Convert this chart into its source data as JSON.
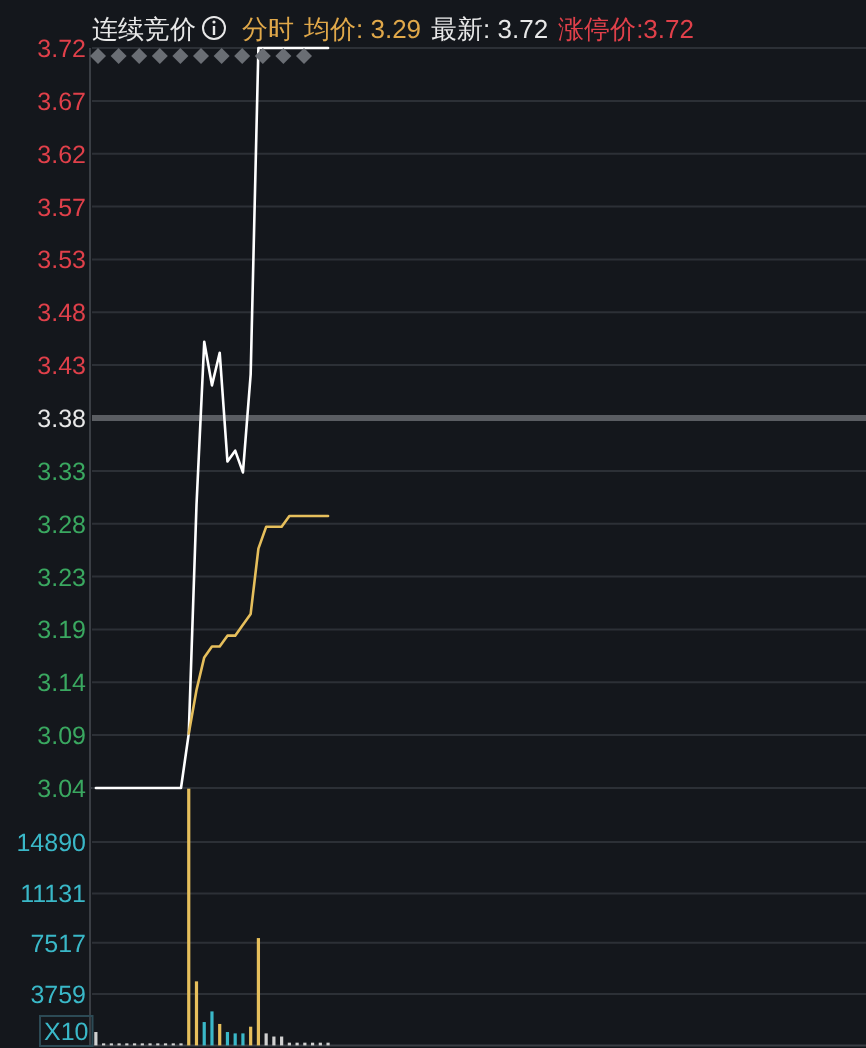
{
  "chart_data": [
    {
      "type": "line",
      "title": "连续竞价",
      "annotations": [
        "分时",
        "均价: 3.29",
        "最新: 3.72",
        "涨停价:3.72"
      ],
      "categories": [
        null,
        null,
        null,
        null,
        null,
        null,
        null,
        null,
        null,
        null,
        null,
        null,
        null,
        null,
        null,
        null,
        null,
        null,
        null,
        null,
        null,
        null,
        null,
        null,
        null,
        null,
        null,
        null,
        null,
        null,
        null,
        null,
        null,
        null,
        null,
        null,
        null,
        null,
        null,
        null,
        null,
        null,
        null,
        null,
        null,
        null,
        null,
        null,
        null,
        null,
        null,
        null,
        null,
        null,
        null,
        null,
        null,
        null,
        null,
        null,
        null,
        null,
        null,
        null,
        null,
        null,
        null,
        null,
        null,
        null,
        null,
        null,
        null,
        null,
        null,
        null,
        null,
        null,
        null,
        null,
        null,
        null,
        null,
        null,
        null,
        null,
        null,
        null,
        null,
        null,
        null,
        null,
        null,
        null,
        null,
        null,
        null,
        null,
        null,
        null
      ],
      "series": [
        {
          "color": "#ffffff",
          "values": [
            3.04,
            3.04,
            3.04,
            3.04,
            3.04,
            3.04,
            3.04,
            3.04,
            3.04,
            3.04,
            3.04,
            3.04,
            3.09,
            3.3,
            3.45,
            3.41,
            3.44,
            3.34,
            3.35,
            3.33,
            3.42,
            3.72,
            3.72,
            3.72,
            3.72,
            3.72,
            3.72,
            3.72,
            3.72,
            3.72,
            3.72,
            null,
            null,
            null,
            null,
            null,
            null,
            null,
            null,
            null,
            null,
            null,
            null,
            null,
            null,
            null,
            null,
            null,
            null,
            null,
            null,
            null,
            null,
            null,
            null,
            null,
            null,
            null,
            null,
            null,
            null,
            null,
            null,
            null,
            null,
            null,
            null,
            null,
            null,
            null,
            null,
            null,
            null,
            null,
            null,
            null,
            null,
            null,
            null,
            null,
            null,
            null,
            null,
            null,
            null,
            null,
            null,
            null,
            null,
            null,
            null,
            null,
            null,
            null,
            null,
            null,
            null,
            null,
            null,
            null
          ]
        },
        {
          "color": "#e6bf5c",
          "values": [
            null,
            null,
            null,
            null,
            null,
            null,
            null,
            null,
            null,
            null,
            null,
            null,
            3.09,
            3.13,
            3.16,
            3.17,
            3.17,
            3.18,
            3.18,
            3.19,
            3.2,
            3.26,
            3.28,
            3.28,
            3.28,
            3.29,
            3.29,
            3.29,
            3.29,
            3.29,
            3.29,
            null,
            null,
            null,
            null,
            null,
            null,
            null,
            null,
            null,
            null,
            null,
            null,
            null,
            null,
            null,
            null,
            null,
            null,
            null,
            null,
            null,
            null,
            null,
            null,
            null,
            null,
            null,
            null,
            null,
            null,
            null,
            null,
            null,
            null,
            null,
            null,
            null,
            null,
            null,
            null,
            null,
            null,
            null,
            null,
            null,
            null,
            null,
            null,
            null,
            null,
            null,
            null,
            null,
            null,
            null,
            null,
            null,
            null,
            null,
            null,
            null,
            null,
            null,
            null,
            null,
            null,
            null,
            null,
            null
          ]
        }
      ],
      "ylim": [
        3.04,
        3.72
      ],
      "yticks": [
        3.04,
        {
          "value": 3.0886,
          "label": "3.09"
        },
        {
          "value": 3.1371,
          "label": "3.14"
        },
        {
          "value": 3.1857,
          "label": "3.19"
        },
        {
          "value": 3.2343,
          "label": "3.23"
        },
        {
          "value": 3.2829,
          "label": "3.28"
        },
        {
          "value": 3.3314,
          "label": "3.33"
        },
        3.38,
        {
          "value": 3.4286,
          "label": "3.43"
        },
        {
          "value": 3.4771,
          "label": "3.48"
        },
        {
          "value": 3.5257,
          "label": "3.53"
        },
        {
          "value": 3.5743,
          "label": "3.57"
        },
        {
          "value": 3.6229,
          "label": "3.62"
        },
        {
          "value": 3.6714,
          "label": "3.67"
        },
        3.72
      ],
      "ref_lines": [
        {
          "axis": "y",
          "value": 3.38,
          "color": "#5a5d62"
        }
      ],
      "grid": "y",
      "tick_labels": "y"
    },
    {
      "type": "bar",
      "annotations": [
        "X10"
      ],
      "categories": [
        null,
        null,
        null,
        null,
        null,
        null,
        null,
        null,
        null,
        null,
        null,
        null,
        null,
        null,
        null,
        null,
        null,
        null,
        null,
        null,
        null,
        null,
        null,
        null,
        null,
        null,
        null,
        null,
        null,
        null,
        null,
        null,
        null,
        null,
        null,
        null,
        null,
        null,
        null,
        null,
        null,
        null,
        null,
        null,
        null,
        null,
        null,
        null,
        null,
        null,
        null,
        null,
        null,
        null,
        null,
        null,
        null,
        null,
        null,
        null,
        null,
        null,
        null,
        null,
        null,
        null,
        null,
        null,
        null,
        null,
        null,
        null,
        null,
        null,
        null,
        null,
        null,
        null,
        null,
        null,
        null,
        null,
        null,
        null,
        null,
        null,
        null,
        null,
        null,
        null,
        null,
        null,
        null,
        null,
        null,
        null,
        null,
        null,
        null,
        null
      ],
      "values": [
        980,
        150,
        150,
        150,
        150,
        150,
        150,
        150,
        150,
        150,
        150,
        150,
        18800,
        4690,
        1710,
        2490,
        1570,
        980,
        880,
        880,
        1370,
        7860,
        880,
        650,
        650,
        200,
        200,
        200,
        200,
        200,
        200,
        null,
        null,
        null,
        null,
        null,
        null,
        null,
        null,
        null,
        null,
        null,
        null,
        null,
        null,
        null,
        null,
        null,
        null,
        null,
        null,
        null,
        null,
        null,
        null,
        null,
        null,
        null,
        null,
        null,
        null,
        null,
        null,
        null,
        null,
        null,
        null,
        null,
        null,
        null,
        null,
        null,
        null,
        null,
        null,
        null,
        null,
        null,
        null,
        null,
        null,
        null,
        null,
        null,
        null,
        null,
        null,
        null,
        null,
        null,
        null,
        null,
        null,
        null,
        null,
        null,
        null,
        null,
        null,
        null
      ],
      "colors": [
        "#d0d0d0",
        "#d0d0d0",
        "#d0d0d0",
        "#d0d0d0",
        "#d0d0d0",
        "#d0d0d0",
        "#d0d0d0",
        "#d0d0d0",
        "#d0d0d0",
        "#d0d0d0",
        "#d0d0d0",
        "#d0d0d0",
        "#e6bf5c",
        "#e6bf5c",
        "#3ab8c8",
        "#3ab8c8",
        "#e6bf5c",
        "#3ab8c8",
        "#3ab8c8",
        "#3ab8c8",
        "#e6bf5c",
        "#e6bf5c",
        "#d0d0d0",
        "#d0d0d0",
        "#d0d0d0",
        "#d0d0d0",
        "#d0d0d0",
        "#d0d0d0",
        "#d0d0d0",
        "#d0d0d0",
        "#d0d0d0",
        null,
        null,
        null,
        null,
        null,
        null,
        null,
        null,
        null,
        null,
        null,
        null,
        null,
        null,
        null,
        null,
        null,
        null,
        null,
        null,
        null,
        null,
        null,
        null,
        null,
        null,
        null,
        null,
        null,
        null,
        null,
        null,
        null,
        null,
        null,
        null,
        null,
        null,
        null,
        null,
        null,
        null,
        null,
        null,
        null,
        null,
        null,
        null,
        null,
        null,
        null,
        null,
        null,
        null,
        null,
        null,
        null,
        null,
        null,
        null,
        null,
        null,
        null,
        null,
        null,
        null,
        null,
        null,
        null
      ],
      "ylim": [
        0,
        18850
      ],
      "yticks": [
        3759,
        7517,
        11131,
        14890
      ],
      "grid": "y",
      "tick_labels": "y"
    }
  ]
}
